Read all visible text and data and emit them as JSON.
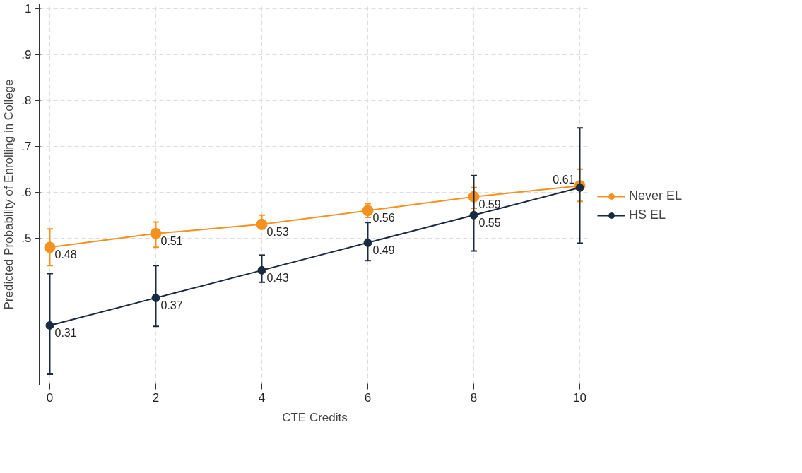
{
  "chart_data": {
    "type": "line",
    "xlabel": "CTE Credits",
    "ylabel": "Predicted Probability of Enrolling in College",
    "x": [
      0,
      2,
      4,
      6,
      8,
      10
    ],
    "series": [
      {
        "name": "Never EL",
        "color": "#f5911e",
        "values": [
          0.48,
          0.51,
          0.53,
          0.56,
          0.59,
          0.614
        ],
        "errors": [
          [
            0.44,
            0.52
          ],
          [
            0.48,
            0.535
          ],
          [
            0.52,
            0.55
          ],
          [
            0.545,
            0.575
          ],
          [
            0.565,
            0.61
          ],
          [
            0.58,
            0.65
          ]
        ],
        "value_labels": [
          "0.48",
          "0.51",
          "0.53",
          "0.56",
          "0.59",
          null
        ]
      },
      {
        "name": "HS EL",
        "color": "#1a2a40",
        "values": [
          0.31,
          0.37,
          0.43,
          0.49,
          0.55,
          0.61
        ],
        "errors": [
          [
            0.204,
            0.423
          ],
          [
            0.308,
            0.44
          ],
          [
            0.404,
            0.463
          ],
          [
            0.451,
            0.534
          ],
          [
            0.472,
            0.636
          ],
          [
            0.489,
            0.74
          ]
        ],
        "value_labels": [
          "0.31",
          "0.37",
          "0.43",
          "0.49",
          "0.55",
          "0.61"
        ]
      }
    ],
    "xlim": [
      -0.2,
      10.2
    ],
    "ylim": [
      0.18,
      1.01
    ],
    "xticks": [
      0,
      2,
      4,
      6,
      8,
      10
    ],
    "yticks": [
      {
        "value": 0.5,
        "label": ".5"
      },
      {
        "value": 0.6,
        "label": ".6"
      },
      {
        "value": 0.7,
        "label": ".7"
      },
      {
        "value": 0.8,
        "label": ".8"
      },
      {
        "value": 0.9,
        "label": ".9"
      },
      {
        "value": 1,
        "label": "1"
      }
    ],
    "grid": true,
    "legend": "right",
    "marker": "circle",
    "line_style": "solid"
  }
}
